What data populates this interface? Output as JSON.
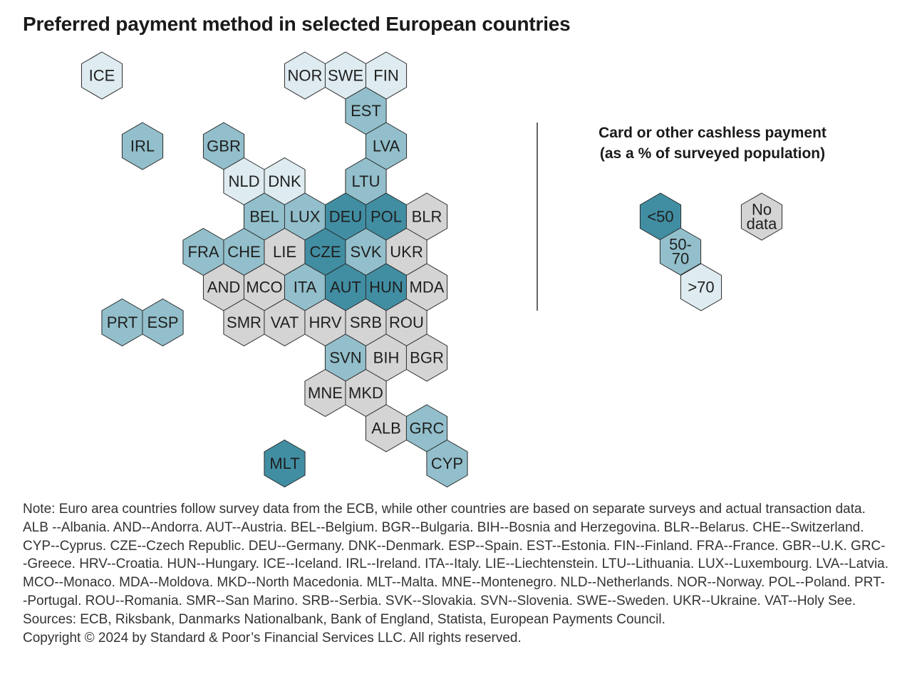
{
  "title": "Preferred payment method in selected European countries",
  "colors": {
    "lt50": "#418ea3",
    "50-70": "#92bfcb",
    "gt70": "#deebf0",
    "nodata": "#d4d4d4",
    "stroke": "#2b2b2b",
    "divider": "#333333"
  },
  "legend": {
    "title_line1": "Card or other cashless payment",
    "title_line2": "(as a % of surveyed population)",
    "items": [
      {
        "category": "lt50",
        "label_lines": [
          "<50"
        ]
      },
      {
        "category": "50-70",
        "label_lines": [
          "50-",
          "70"
        ]
      },
      {
        "category": "gt70",
        "label_lines": [
          ">70"
        ]
      },
      {
        "category": "nodata",
        "label_lines": [
          "No",
          "data"
        ]
      }
    ]
  },
  "countries": [
    {
      "code": "ICE",
      "category": "gt70"
    },
    {
      "code": "NOR",
      "category": "gt70"
    },
    {
      "code": "SWE",
      "category": "gt70"
    },
    {
      "code": "FIN",
      "category": "gt70"
    },
    {
      "code": "EST",
      "category": "50-70"
    },
    {
      "code": "IRL",
      "category": "50-70"
    },
    {
      "code": "GBR",
      "category": "50-70"
    },
    {
      "code": "LVA",
      "category": "50-70"
    },
    {
      "code": "NLD",
      "category": "gt70"
    },
    {
      "code": "DNK",
      "category": "gt70"
    },
    {
      "code": "LTU",
      "category": "50-70"
    },
    {
      "code": "BEL",
      "category": "50-70"
    },
    {
      "code": "LUX",
      "category": "50-70"
    },
    {
      "code": "DEU",
      "category": "lt50"
    },
    {
      "code": "POL",
      "category": "lt50"
    },
    {
      "code": "BLR",
      "category": "nodata"
    },
    {
      "code": "FRA",
      "category": "50-70"
    },
    {
      "code": "CHE",
      "category": "50-70"
    },
    {
      "code": "LIE",
      "category": "nodata"
    },
    {
      "code": "CZE",
      "category": "lt50"
    },
    {
      "code": "SVK",
      "category": "50-70"
    },
    {
      "code": "UKR",
      "category": "nodata"
    },
    {
      "code": "AND",
      "category": "nodata"
    },
    {
      "code": "MCO",
      "category": "nodata"
    },
    {
      "code": "ITA",
      "category": "50-70"
    },
    {
      "code": "AUT",
      "category": "lt50"
    },
    {
      "code": "HUN",
      "category": "lt50"
    },
    {
      "code": "MDA",
      "category": "nodata"
    },
    {
      "code": "PRT",
      "category": "50-70"
    },
    {
      "code": "ESP",
      "category": "50-70"
    },
    {
      "code": "SMR",
      "category": "nodata"
    },
    {
      "code": "VAT",
      "category": "nodata"
    },
    {
      "code": "HRV",
      "category": "nodata"
    },
    {
      "code": "SRB",
      "category": "nodata"
    },
    {
      "code": "ROU",
      "category": "nodata"
    },
    {
      "code": "SVN",
      "category": "50-70"
    },
    {
      "code": "BIH",
      "category": "nodata"
    },
    {
      "code": "BGR",
      "category": "nodata"
    },
    {
      "code": "MNE",
      "category": "nodata"
    },
    {
      "code": "MKD",
      "category": "nodata"
    },
    {
      "code": "ALB",
      "category": "nodata"
    },
    {
      "code": "GRC",
      "category": "50-70"
    },
    {
      "code": "MLT",
      "category": "lt50"
    },
    {
      "code": "CYP",
      "category": "50-70"
    }
  ],
  "notes": {
    "note": "Note: Euro area countries follow survey data from the ECB, while other countries are based on separate surveys and actual transaction data. ALB --Albania. AND--Andorra. AUT--Austria. BEL--Belgium. BGR--Bulgaria. BIH--Bosnia and Herzegovina. BLR--Belarus. CHE--Switzerland. CYP--Cyprus. CZE--Czech Republic. DEU--Germany. DNK--Denmark. ESP--Spain. EST--Estonia. FIN--Finland. FRA--France. GBR--U.K. GRC--Greece. HRV--Croatia. HUN--Hungary. ICE--Iceland. IRL--Ireland. ITA--Italy. LIE--Liechtenstein. LTU--Lithuania. LUX--Luxembourg. LVA--Latvia. MCO--Monaco. MDA--Moldova. MKD--North Macedonia. MLT--Malta. MNE--Montenegro. NLD--Netherlands. NOR--Norway. POL--Poland. PRT--Portugal. ROU--Romania. SMR--San Marino. SRB--Serbia. SVK--Slovakia. SVN--Slovenia. SWE--Sweden. UKR--Ukraine. VAT--Holy See.",
    "sources": "Sources: ECB, Riksbank, Danmarks Nationalbank, Bank of England, Statista, European Payments Council.",
    "copyright": "Copyright © 2024 by Standard & Poor’s Financial Services LLC. All rights reserved."
  }
}
